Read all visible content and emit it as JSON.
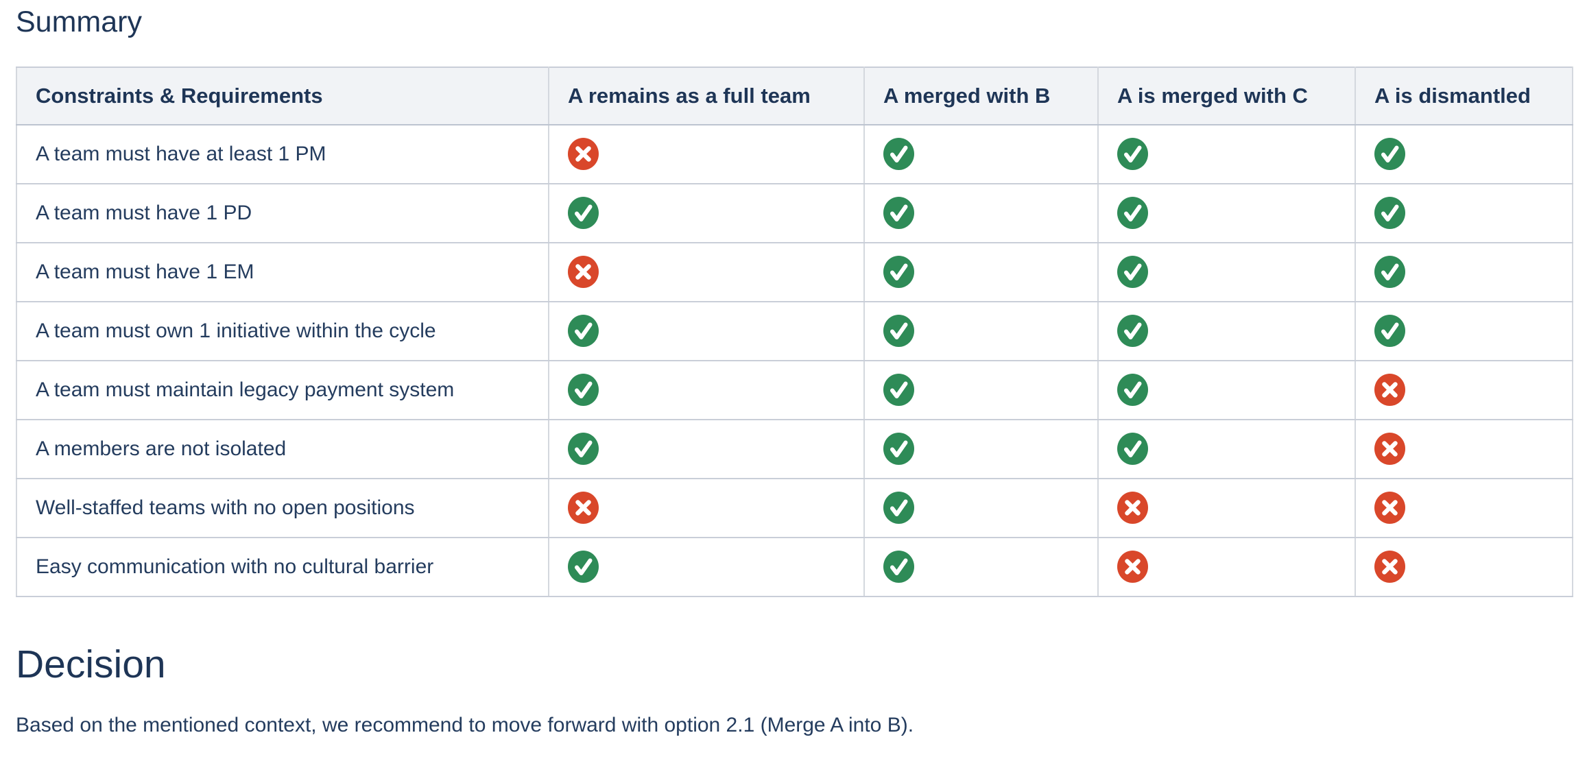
{
  "page": {
    "summary_title": "Summary",
    "decision_title": "Decision",
    "decision_text": "Based on the mentioned context, we recommend to move forward with option 2.1 (Merge A into B)."
  },
  "table": {
    "columns": [
      "Constraints & Requirements",
      "A remains as a full team",
      "A merged with B",
      "A is merged with C",
      "A is dismantled"
    ],
    "rows": [
      {
        "label": "A team must have at least 1 PM",
        "values": [
          "no",
          "yes",
          "yes",
          "yes"
        ]
      },
      {
        "label": "A team must have 1 PD",
        "values": [
          "yes",
          "yes",
          "yes",
          "yes"
        ]
      },
      {
        "label": "A team must have 1 EM",
        "values": [
          "no",
          "yes",
          "yes",
          "yes"
        ]
      },
      {
        "label": "A team must own 1 initiative within the cycle",
        "values": [
          "yes",
          "yes",
          "yes",
          "yes"
        ]
      },
      {
        "label": "A team must maintain legacy payment system",
        "values": [
          "yes",
          "yes",
          "yes",
          "no"
        ]
      },
      {
        "label": "A members are not isolated",
        "values": [
          "yes",
          "yes",
          "yes",
          "no"
        ]
      },
      {
        "label": "Well-staffed teams with no open positions",
        "values": [
          "no",
          "yes",
          "no",
          "no"
        ]
      },
      {
        "label": "Easy communication with no cultural barrier",
        "values": [
          "yes",
          "yes",
          "no",
          "no"
        ]
      }
    ],
    "icons": {
      "yes": "check-icon",
      "no": "cross-icon"
    }
  },
  "colors": {
    "check_green": "#2e8b57",
    "cross_red": "#d9472a",
    "heading_text": "#1e3556",
    "body_text": "#243c5e",
    "header_row_bg": "#f1f3f6",
    "table_border": "#c9ced8"
  }
}
